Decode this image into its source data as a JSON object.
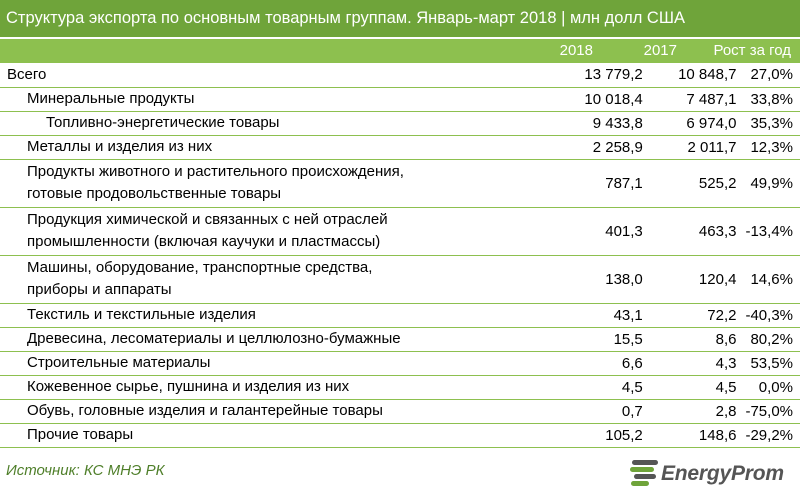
{
  "title": "Структура экспорта по основным товарным группам. Январь-март 2018 | млн долл США",
  "columns": {
    "c2018": "2018",
    "c2017": "2017",
    "growth": "Рост за год"
  },
  "rows": [
    {
      "name": "Всего",
      "v2018": "13 779,2",
      "v2017": "10 848,7",
      "growth": "27,0%"
    },
    {
      "name": "Минеральные продукты",
      "v2018": "10 018,4",
      "v2017": "7 487,1",
      "growth": "33,8%"
    },
    {
      "name": "Топливно-энергетические товары",
      "v2018": "9 433,8",
      "v2017": "6 974,0",
      "growth": "35,3%"
    },
    {
      "name": "Металлы и изделия из них",
      "v2018": "2 258,9",
      "v2017": "2 011,7",
      "growth": "12,3%"
    },
    {
      "name_line1": "Продукты животного и растительного происхождения,",
      "name_line2": "готовые продовольственные товары",
      "v2018": "787,1",
      "v2017": "525,2",
      "growth": "49,9%"
    },
    {
      "name_line1": "Продукция химической и связанных с ней отраслей",
      "name_line2": "промышленности (включая каучуки и пластмассы)",
      "v2018": "401,3",
      "v2017": "463,3",
      "growth": "-13,4%"
    },
    {
      "name_line1": "Машины, оборудование, транспортные средства,",
      "name_line2": "приборы и аппараты",
      "v2018": "138,0",
      "v2017": "120,4",
      "growth": "14,6%"
    },
    {
      "name": "Текстиль и текстильные изделия",
      "v2018": "43,1",
      "v2017": "72,2",
      "growth": "-40,3%"
    },
    {
      "name": "Древесина, лесоматериалы и целлюлозно-бумажные",
      "v2018": "15,5",
      "v2017": "8,6",
      "growth": "80,2%"
    },
    {
      "name": "Строительные материалы",
      "v2018": "6,6",
      "v2017": "4,3",
      "growth": "53,5%"
    },
    {
      "name": "Кожевенное сырье, пушнина и изделия из них",
      "v2018": "4,5",
      "v2017": "4,5",
      "growth": "0,0%"
    },
    {
      "name": "Обувь, головные изделия и галантерейные товары",
      "v2018": "0,7",
      "v2017": "2,8",
      "growth": "-75,0%"
    },
    {
      "name": "Прочие товары",
      "v2018": "105,2",
      "v2017": "148,6",
      "growth": "-29,2%"
    }
  ],
  "source": "Источник: КС МНЭ РК",
  "brand": "EnergyProm",
  "colors": {
    "title_bg": "#6fa43a",
    "header_bg": "#8dc04f",
    "rule": "#8dc04f",
    "source_text": "#4f7f2a",
    "logo": "#555555"
  },
  "chart_data": {
    "type": "table",
    "title": "Структура экспорта по основным товарным группам. Январь-март 2018 | млн долл США",
    "columns": [
      "",
      "2018",
      "2017",
      "Рост за год"
    ],
    "rows": [
      [
        "Всего",
        13779.2,
        10848.7,
        27.0
      ],
      [
        "Минеральные продукты",
        10018.4,
        7487.1,
        33.8
      ],
      [
        "Топливно-энергетические товары",
        9433.8,
        6974.0,
        35.3
      ],
      [
        "Металлы и изделия из них",
        2258.9,
        2011.7,
        12.3
      ],
      [
        "Продукты животного и растительного происхождения, готовые продовольственные товары",
        787.1,
        525.2,
        49.9
      ],
      [
        "Продукция химической и связанных с ней отраслей промышленности (включая каучуки и пластмассы)",
        401.3,
        463.3,
        -13.4
      ],
      [
        "Машины, оборудование, транспортные средства, приборы и аппараты",
        138.0,
        120.4,
        14.6
      ],
      [
        "Текстиль и текстильные изделия",
        43.1,
        72.2,
        -40.3
      ],
      [
        "Древесина, лесоматериалы и целлюлозно-бумажные",
        15.5,
        8.6,
        80.2
      ],
      [
        "Строительные материалы",
        6.6,
        4.3,
        53.5
      ],
      [
        "Кожевенное сырье, пушнина и изделия из них",
        4.5,
        4.5,
        0.0
      ],
      [
        "Обувь, головные изделия и галантерейные товары",
        0.7,
        2.8,
        -75.0
      ],
      [
        "Прочие товары",
        105.2,
        148.6,
        -29.2
      ]
    ]
  }
}
